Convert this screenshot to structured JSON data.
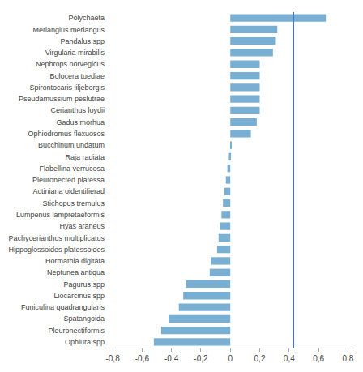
{
  "chart_data": {
    "type": "bar",
    "orientation": "horizontal",
    "categories": [
      "Polychaeta",
      "Merlangius merlangus",
      "Pandalus spp",
      "Virgularia mirabilis",
      "Nephrops norvegicus",
      "Bolocera tuediae",
      "Spirontocaris liljeborgis",
      "Pseudamussium peslutrae",
      "Cerianthus loydii",
      "Gadus morhua",
      "Ophiodromus flexuosos",
      "Bucchinum undatum",
      "Raja radiata",
      "Flabellina verrucosa",
      "Pleuronected platessa",
      "Actiniaria oidentifierad",
      "Stichopus tremulus",
      "Lumpenus lampretaeformis",
      "Hyas araneus",
      "Pachycerianthus multiplicatus",
      "Hippoglossoides platessoides",
      "Hormathia digitata",
      "Neptunea antiqua",
      "Pagurus spp",
      "Liocarcinus spp",
      "Funiculina quadrangularis",
      "Spatangoida",
      "Pleuronectiformis",
      "Ophiura spp"
    ],
    "values": [
      0.65,
      0.32,
      0.31,
      0.29,
      0.2,
      0.2,
      0.2,
      0.2,
      0.2,
      0.18,
      0.14,
      0.01,
      -0.01,
      -0.02,
      -0.03,
      -0.04,
      -0.05,
      -0.06,
      -0.07,
      -0.08,
      -0.09,
      -0.13,
      -0.14,
      -0.3,
      -0.32,
      -0.35,
      -0.42,
      -0.47,
      -0.52
    ],
    "color": "#7aafd4",
    "reference_line": {
      "x": 0.43,
      "color": "#4472c4"
    },
    "xlim": [
      -0.85,
      0.82
    ],
    "xticks": [
      {
        "value": -0.8,
        "label": "-0,8"
      },
      {
        "value": -0.6,
        "label": "-0,6"
      },
      {
        "value": -0.4,
        "label": "-0,4"
      },
      {
        "value": -0.2,
        "label": "-0,2"
      },
      0,
      {
        "value": 0.2,
        "label": "0,2"
      },
      {
        "value": 0.4,
        "label": "0,4"
      },
      {
        "value": 0.6,
        "label": "0,6"
      },
      {
        "value": 0.8,
        "label": "0,8"
      }
    ],
    "grid": false
  }
}
